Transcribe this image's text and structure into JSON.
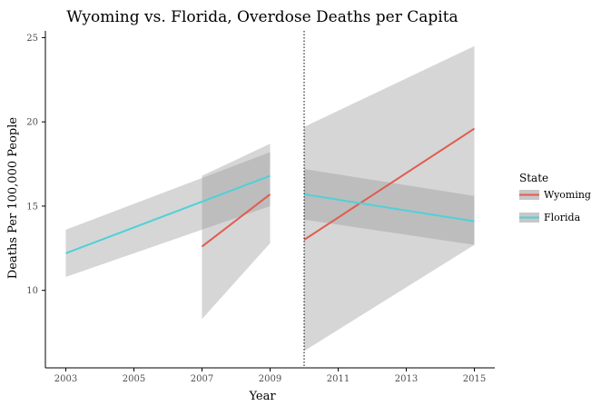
{
  "chart_data": {
    "type": "line",
    "title": "Wyoming vs. Florida, Overdose Deaths per Capita",
    "xlabel": "Year",
    "ylabel": "Deaths Per 100,000 People",
    "xlim": [
      2002.4,
      2015.6
    ],
    "ylim": [
      5.4,
      25.4
    ],
    "x_ticks": [
      2003,
      2005,
      2007,
      2009,
      2011,
      2013,
      2015
    ],
    "y_ticks": [
      10,
      15,
      20,
      25
    ],
    "grid": false,
    "vline": {
      "x": 2010,
      "style": "dotted"
    },
    "legend": {
      "title": "State",
      "placement": "right"
    },
    "ribbon_color": "#999999",
    "series": [
      {
        "name": "Wyoming",
        "color": "#e05c4f",
        "segments": [
          {
            "x": [
              2007,
              2009
            ],
            "y": [
              12.6,
              15.7
            ],
            "ci_lower": [
              8.3,
              12.8
            ],
            "ci_upper": [
              16.8,
              18.7
            ]
          },
          {
            "x": [
              2010,
              2015
            ],
            "y": [
              13.0,
              19.6
            ],
            "ci_lower": [
              6.4,
              12.7
            ],
            "ci_upper": [
              19.7,
              24.5
            ]
          }
        ]
      },
      {
        "name": "Florida",
        "color": "#4fd0d8",
        "segments": [
          {
            "x": [
              2003,
              2009
            ],
            "y": [
              12.2,
              16.8
            ],
            "ci_lower": [
              10.8,
              15.0
            ],
            "ci_upper": [
              13.6,
              18.2
            ]
          },
          {
            "x": [
              2010,
              2015
            ],
            "y": [
              15.7,
              14.1
            ],
            "ci_lower": [
              14.2,
              12.7
            ],
            "ci_upper": [
              17.2,
              15.6
            ]
          }
        ]
      }
    ]
  }
}
